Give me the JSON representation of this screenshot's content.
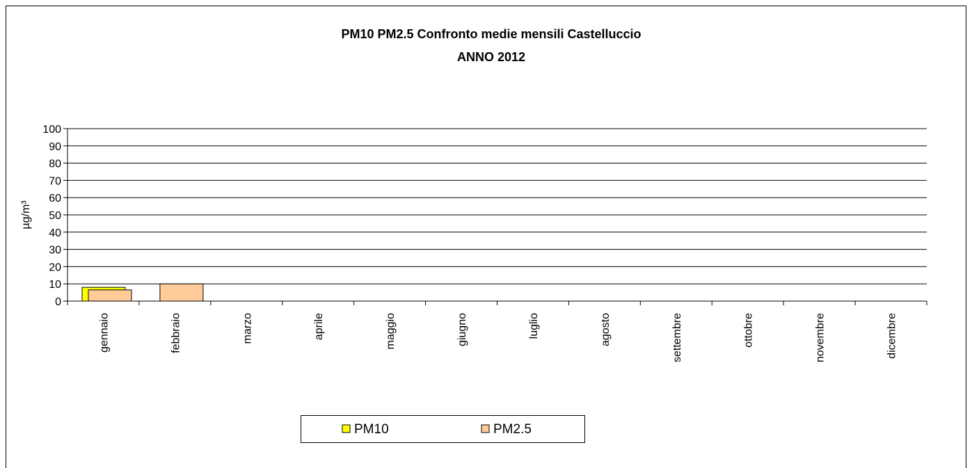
{
  "chart_data": {
    "type": "bar",
    "title": "PM10 PM2.5 Confronto medie mensili Castelluccio",
    "subtitle": "ANNO 2012",
    "y_label": "µg/m³",
    "categories": [
      "gennaio",
      "febbraio",
      "marzo",
      "aprile",
      "maggio",
      "giugno",
      "luglio",
      "agosto",
      "settembre",
      "ottobre",
      "novembre",
      "dicembre"
    ],
    "series": [
      {
        "name": "PM10",
        "color": "#ffff00",
        "values": [
          8,
          null,
          null,
          null,
          null,
          null,
          null,
          null,
          null,
          null,
          null,
          null
        ]
      },
      {
        "name": "PM2.5",
        "color": "#ffcc99",
        "values": [
          6.5,
          10,
          null,
          null,
          null,
          null,
          null,
          null,
          null,
          null,
          null,
          null
        ]
      }
    ],
    "ylim": [
      0,
      100
    ],
    "yticks": [
      0,
      10,
      20,
      30,
      40,
      50,
      60,
      70,
      80,
      90,
      100
    ],
    "grid": true,
    "legend": "bottom"
  }
}
